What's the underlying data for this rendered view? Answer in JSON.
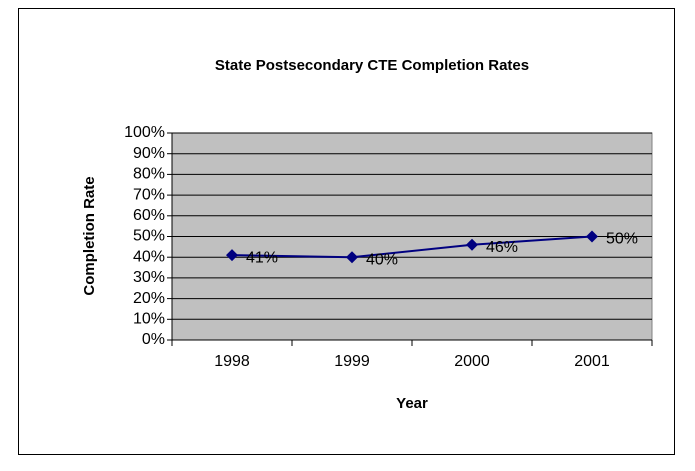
{
  "chart_data": {
    "type": "line",
    "title": "State Postsecondary CTE Completion Rates",
    "x_label": "Year",
    "y_label": "Completion Rate",
    "categories": [
      "1998",
      "1999",
      "2000",
      "2001"
    ],
    "series": [
      {
        "name": "Completion Rate",
        "color": "#000080",
        "values": [
          41,
          40,
          46,
          50
        ],
        "value_labels": [
          "41%",
          "40%",
          "46%",
          "50%"
        ]
      }
    ],
    "ylim": [
      0,
      100
    ],
    "yticks": [
      {
        "value": 0,
        "label": "0%"
      },
      {
        "value": 10,
        "label": "10%"
      },
      {
        "value": 20,
        "label": "20%"
      },
      {
        "value": 30,
        "label": "30%"
      },
      {
        "value": 40,
        "label": "40%"
      },
      {
        "value": 50,
        "label": "50%"
      },
      {
        "value": 60,
        "label": "60%"
      },
      {
        "value": 70,
        "label": "70%"
      },
      {
        "value": 80,
        "label": "80%"
      },
      {
        "value": 90,
        "label": "90%"
      },
      {
        "value": 100,
        "label": "100%"
      }
    ],
    "grid": true,
    "plot_background": "#c0c0c0"
  }
}
